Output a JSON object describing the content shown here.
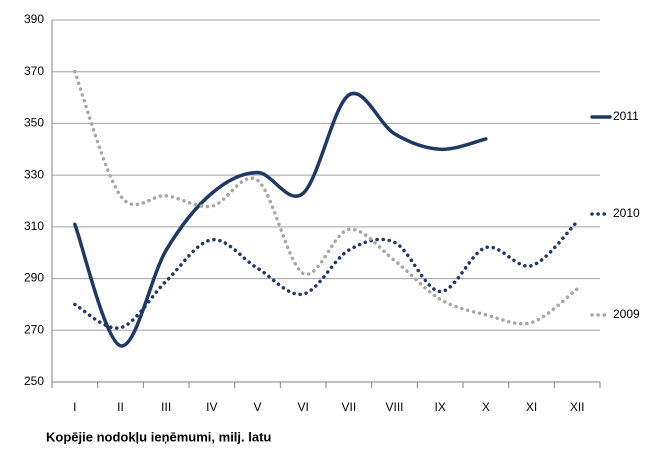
{
  "chart_data": {
    "type": "line",
    "x_axis_label": "Kopējie nodokļu ieņēmumi, milj. latu",
    "categories": [
      "I",
      "II",
      "III",
      "IV",
      "V",
      "VI",
      "VII",
      "VIII",
      "IX",
      "X",
      "XI",
      "XII"
    ],
    "series": [
      {
        "name": "2011",
        "color": "#1f3864",
        "style": "solid",
        "values": [
          311,
          264,
          301,
          323,
          331,
          323,
          361,
          346,
          340,
          344,
          null,
          null
        ]
      },
      {
        "name": "2010",
        "color": "#1f3864",
        "style": "dotted",
        "values": [
          280,
          271,
          289,
          305,
          294,
          284,
          301,
          304,
          285,
          302,
          295,
          312
        ]
      },
      {
        "name": "2009",
        "color": "#a6a6a6",
        "style": "dotted",
        "values": [
          370,
          322,
          322,
          318,
          328,
          292,
          309,
          297,
          282,
          276,
          273,
          286
        ]
      }
    ],
    "ylim": [
      250,
      390
    ],
    "yticks": [
      250,
      270,
      290,
      310,
      330,
      350,
      370,
      390
    ],
    "grid": true,
    "legend": "right"
  }
}
